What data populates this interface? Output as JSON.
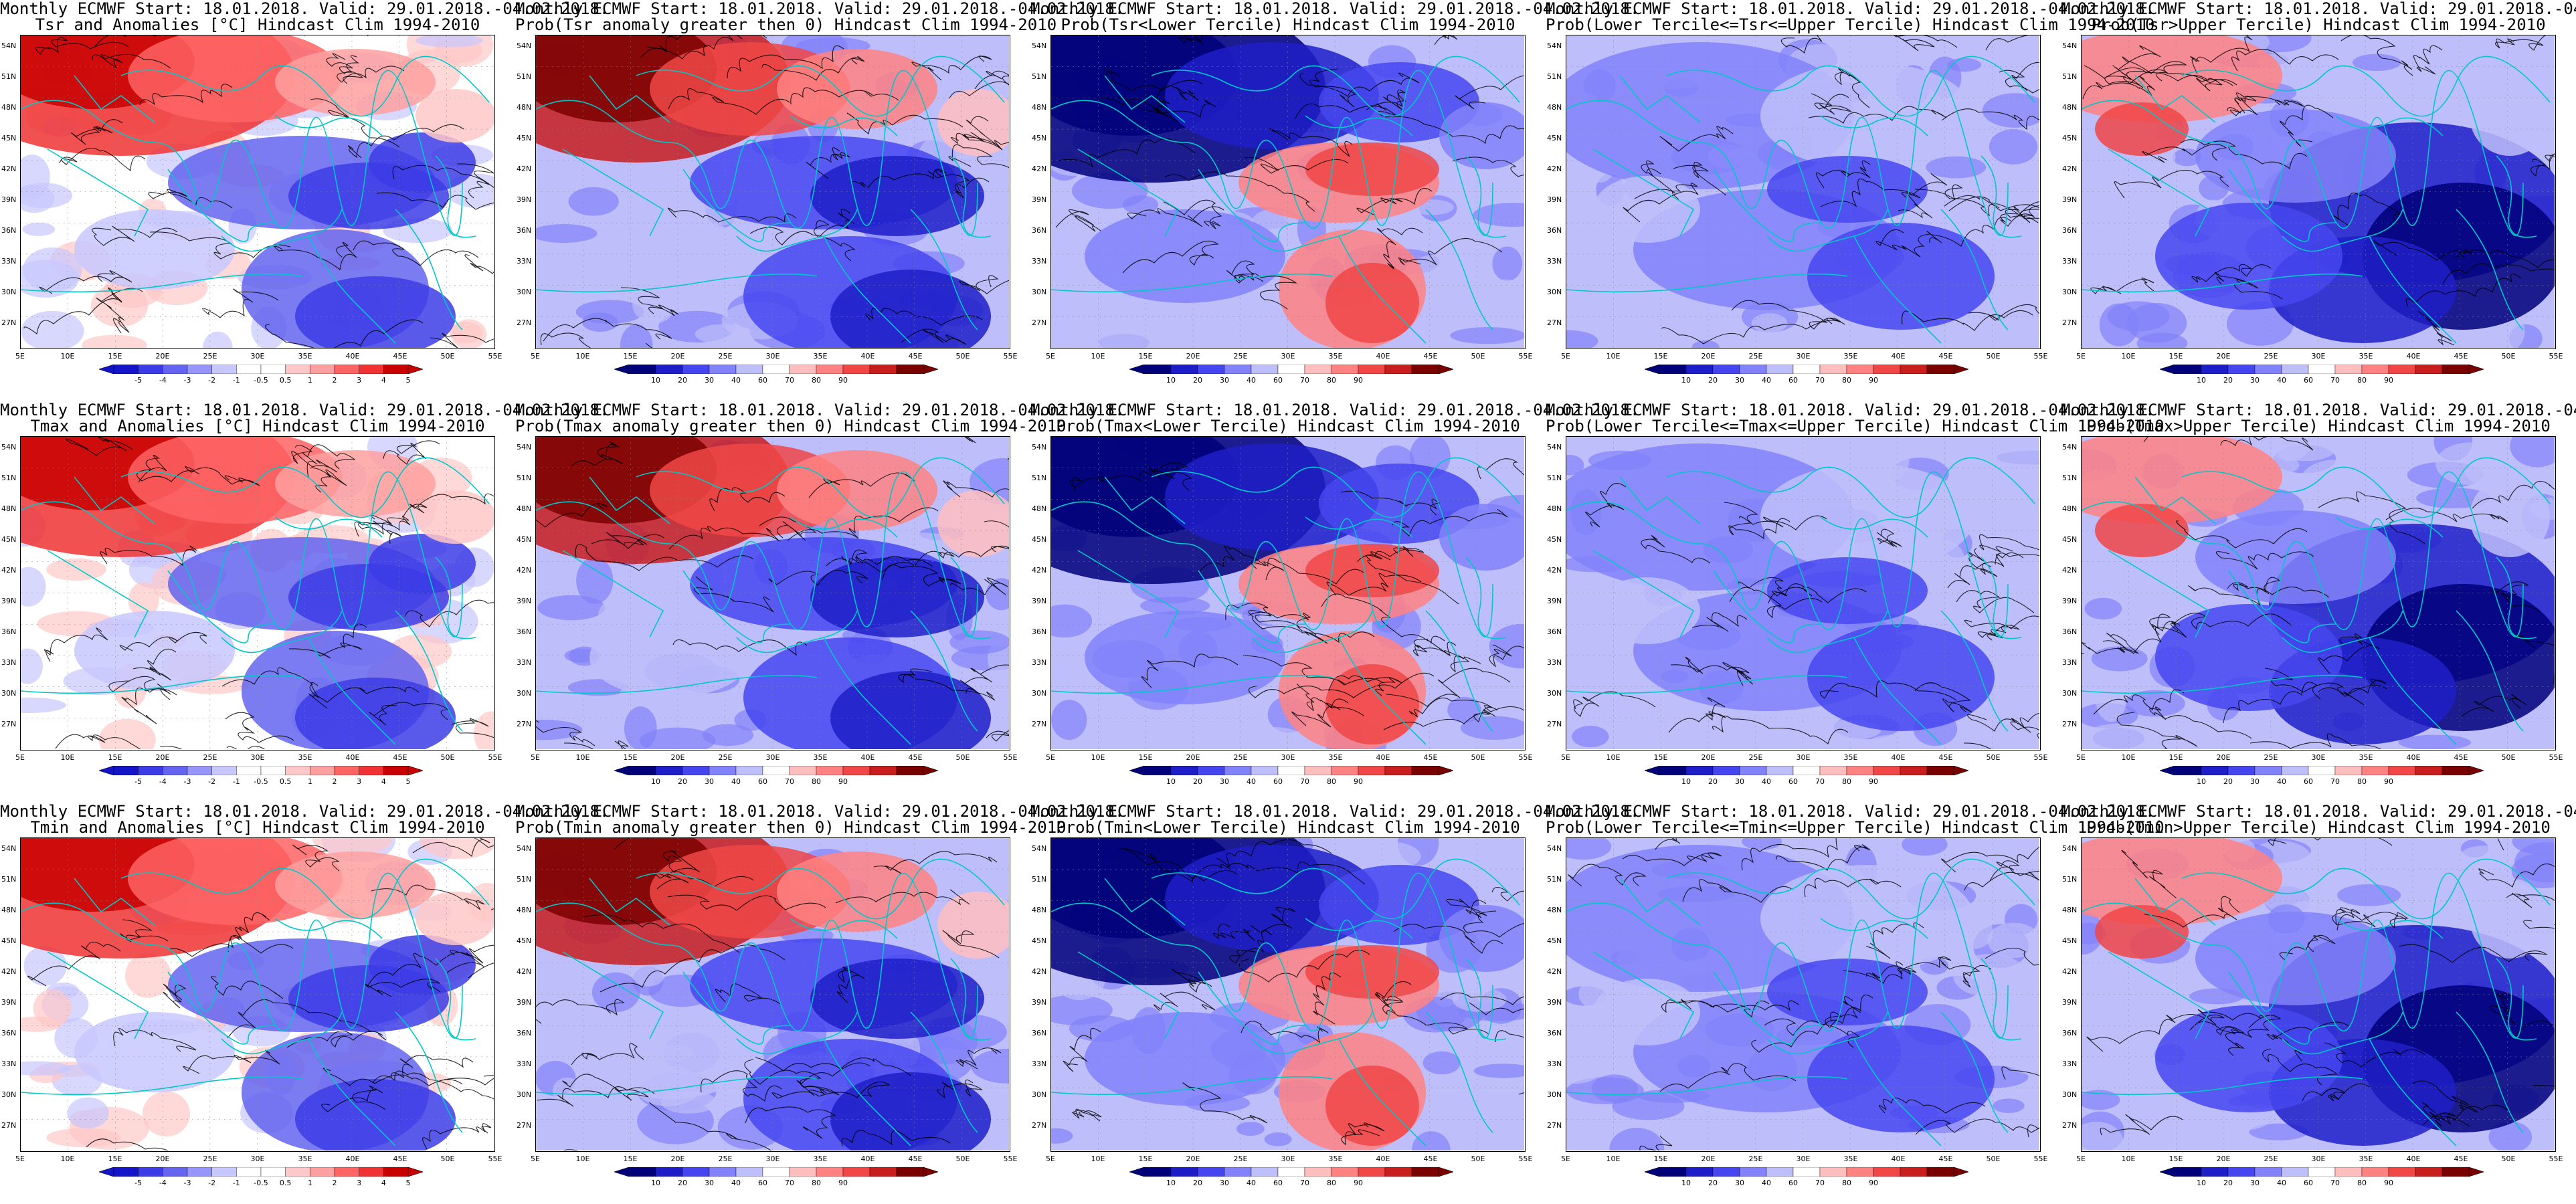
{
  "header_line": "Monthly ECMWF Start: 18.01.2018. Valid: 29.01.2018.-04.02.2018.",
  "lat_labels": [
    "54N",
    "51N",
    "48N",
    "45N",
    "42N",
    "39N",
    "36N",
    "33N",
    "30N",
    "27N"
  ],
  "lon_labels": [
    "5E",
    "10E",
    "15E",
    "20E",
    "25E",
    "30E",
    "35E",
    "40E",
    "45E",
    "50E",
    "55E"
  ],
  "colors": {
    "anomaly": [
      "#1414c8",
      "#3c3ce6",
      "#6464f0",
      "#9696fa",
      "#c8c8ff",
      "#ffffff",
      "#ffffff",
      "#ffc8c8",
      "#ffa0a0",
      "#ff6464",
      "#f03232",
      "#c80000"
    ],
    "prob": [
      "#00007a",
      "#1e1ec8",
      "#4646f0",
      "#8282fa",
      "#bebefa",
      "#ffffff",
      "#ffbebe",
      "#ff8282",
      "#f04646",
      "#c81e1e",
      "#7a0000"
    ],
    "coast": "#00c8c8",
    "contour": "#000000"
  },
  "legends": {
    "anomaly_ticks": [
      "-5",
      "-4",
      "-3",
      "-2",
      "-1",
      "-0.5",
      "0.5",
      "1",
      "2",
      "3",
      "4",
      "5"
    ],
    "prob_ticks": [
      "10",
      "20",
      "30",
      "40",
      "60",
      "70",
      "80",
      "90"
    ]
  },
  "panels": [
    {
      "id": "tsr-anom",
      "title": "Tsr and Anomalies [°C] Hindcast Clim 1994-2010",
      "kind": "anom",
      "pattern": 0
    },
    {
      "id": "tsr-gt0",
      "title": "Prob(Tsr anomaly greater then 0) Hindcast Clim 1994-2010",
      "kind": "prob",
      "pattern": 1
    },
    {
      "id": "tsr-lower",
      "title": "Prob(Tsr<Lower Tercile) Hindcast Clim 1994-2010",
      "kind": "prob",
      "pattern": 2
    },
    {
      "id": "tsr-mid",
      "title": "Prob(Lower Tercile<=Tsr<=Upper Tercile) Hindcast Clim 1994-2010",
      "kind": "prob",
      "pattern": 3
    },
    {
      "id": "tsr-upper",
      "title": "Prob(Tsr>Upper Tercile) Hindcast Clim 1994-2010",
      "kind": "prob",
      "pattern": 4
    },
    {
      "id": "tmax-anom",
      "title": "Tmax and Anomalies [°C] Hindcast Clim 1994-2010",
      "kind": "anom",
      "pattern": 0
    },
    {
      "id": "tmax-gt0",
      "title": "Prob(Tmax anomaly greater then 0) Hindcast Clim 1994-2010",
      "kind": "prob",
      "pattern": 1
    },
    {
      "id": "tmax-lower",
      "title": "Prob(Tmax<Lower Tercile) Hindcast Clim 1994-2010",
      "kind": "prob",
      "pattern": 2
    },
    {
      "id": "tmax-mid",
      "title": "Prob(Lower Tercile<=Tmax<=Upper Tercile) Hindcast Clim 1994-2010",
      "kind": "prob",
      "pattern": 3
    },
    {
      "id": "tmax-upper",
      "title": "Prob(Tmax>Upper Tercile) Hindcast Clim 1994-2010",
      "kind": "prob",
      "pattern": 4
    },
    {
      "id": "tmin-anom",
      "title": "Tmin and Anomalies [°C] Hindcast Clim 1994-2010",
      "kind": "anom",
      "pattern": 0
    },
    {
      "id": "tmin-gt0",
      "title": "Prob(Tmin anomaly greater then 0) Hindcast Clim 1994-2010",
      "kind": "prob",
      "pattern": 1
    },
    {
      "id": "tmin-lower",
      "title": "Prob(Tmin<Lower Tercile) Hindcast Clim 1994-2010",
      "kind": "prob",
      "pattern": 2
    },
    {
      "id": "tmin-mid",
      "title": "Prob(Lower Tercile<=Tmin<=Upper Tercile) Hindcast Clim 1994-2010",
      "kind": "prob",
      "pattern": 3
    },
    {
      "id": "tmin-upper",
      "title": "Prob(Tmin>Upper Tercile) Hindcast Clim 1994-2010",
      "kind": "prob",
      "pattern": 4
    }
  ]
}
